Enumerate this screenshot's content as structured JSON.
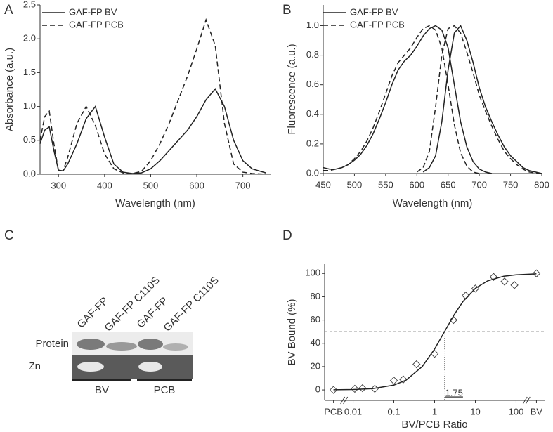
{
  "chart_data": [
    {
      "type": "line",
      "panel": "A",
      "x_label": "Wavelength (nm)",
      "y_label": "Absorbance (a.u.)",
      "x": [
        260,
        270,
        280,
        290,
        300,
        310,
        320,
        340,
        360,
        380,
        400,
        420,
        440,
        460,
        480,
        500,
        520,
        540,
        560,
        580,
        600,
        620,
        640,
        660,
        680,
        700,
        720,
        750
      ],
      "series": [
        {
          "name": "GAF-FP BV",
          "color": "#222222",
          "dashed": false,
          "values": [
            0.45,
            0.65,
            0.7,
            0.35,
            0.06,
            0.05,
            0.15,
            0.45,
            0.82,
            1.0,
            0.55,
            0.15,
            0.03,
            0.01,
            0.02,
            0.08,
            0.2,
            0.35,
            0.5,
            0.65,
            0.85,
            1.1,
            1.26,
            1.0,
            0.5,
            0.2,
            0.08,
            0.02
          ]
        },
        {
          "name": "GAF-FP PCB",
          "color": "#222222",
          "dashed": true,
          "values": [
            0.5,
            0.85,
            0.93,
            0.45,
            0.05,
            0.05,
            0.25,
            0.75,
            1.0,
            0.72,
            0.3,
            0.08,
            0.02,
            0.01,
            0.04,
            0.2,
            0.45,
            0.75,
            1.1,
            1.45,
            1.85,
            2.28,
            1.9,
            0.75,
            0.15,
            0.03,
            0.01,
            0
          ]
        }
      ],
      "xlim": [
        260,
        760
      ],
      "xticks": [
        300,
        400,
        500,
        600,
        700
      ],
      "ylim": [
        0,
        2.5
      ],
      "yticks": [
        {
          "value": 0,
          "label": "0.0"
        },
        0.5,
        {
          "value": 1,
          "label": "1.0"
        },
        1.5,
        {
          "value": 2,
          "label": "2.0"
        },
        2.5
      ],
      "log_x": false,
      "legend": "upper left"
    },
    {
      "type": "line",
      "panel": "B",
      "x_label": "Wavelength (nm)",
      "y_label": "Fluorescence (a.u.)",
      "x": [
        450,
        460,
        470,
        480,
        490,
        500,
        510,
        520,
        530,
        540,
        550,
        560,
        570,
        580,
        590,
        600,
        610,
        620,
        630,
        640,
        650,
        660,
        670,
        680,
        690,
        700,
        710,
        720,
        730,
        740,
        750,
        760,
        770,
        780,
        790,
        800
      ],
      "series": [
        {
          "name": "GAF-FP BV",
          "color": "#222222",
          "dashed": false,
          "values": [
            0.04,
            0.03,
            0.03,
            0.04,
            0.06,
            0.09,
            0.13,
            0.19,
            0.27,
            0.37,
            0.48,
            0.6,
            0.7,
            0.76,
            0.8,
            0.86,
            0.93,
            0.98,
            1.0,
            0.97,
            0.85,
            0.6,
            0.35,
            0.18,
            0.08,
            0.03,
            0.01,
            0,
            null,
            null,
            null,
            null,
            null,
            null,
            null,
            null
          ]
        },
        {
          "name": "GAF-FP PCB",
          "color": "#222222",
          "dashed": true,
          "values": [
            0.02,
            0.02,
            0.03,
            0.04,
            0.06,
            0.1,
            0.15,
            0.22,
            0.31,
            0.42,
            0.54,
            0.66,
            0.75,
            0.8,
            0.85,
            0.92,
            0.98,
            1.0,
            0.97,
            0.85,
            0.6,
            0.33,
            0.14,
            0.05,
            0.01,
            0,
            null,
            null,
            null,
            null,
            null,
            null,
            null,
            null,
            null,
            null
          ]
        },
        {
          "name": "GAF-FP BV",
          "color": "#222222",
          "dashed": false,
          "values": [
            null,
            null,
            null,
            null,
            null,
            null,
            null,
            null,
            null,
            null,
            null,
            null,
            null,
            null,
            null,
            null,
            0.01,
            0.04,
            0.12,
            0.35,
            0.7,
            0.95,
            1.0,
            0.9,
            0.75,
            0.58,
            0.45,
            0.35,
            0.26,
            0.18,
            0.12,
            0.08,
            0.04,
            0.02,
            0.01,
            0
          ]
        },
        {
          "name": "GAF-FP PCB",
          "color": "#222222",
          "dashed": true,
          "values": [
            null,
            null,
            null,
            null,
            null,
            null,
            null,
            null,
            null,
            null,
            null,
            null,
            null,
            null,
            null,
            0.01,
            0.04,
            0.15,
            0.45,
            0.8,
            0.98,
            1.0,
            0.95,
            0.82,
            0.68,
            0.53,
            0.42,
            0.32,
            0.23,
            0.15,
            0.1,
            0.06,
            0.03,
            0.01,
            0.005,
            0
          ]
        }
      ],
      "xlim": [
        450,
        800
      ],
      "xticks": [
        450,
        500,
        550,
        600,
        650,
        700,
        750,
        800
      ],
      "ylim": [
        0,
        1.14
      ],
      "yticks": [
        {
          "value": 0,
          "label": "0.0"
        },
        0.2,
        0.4,
        0.6,
        0.8,
        {
          "value": 1,
          "label": "1.0"
        }
      ],
      "log_x": false,
      "legend": "upper left"
    },
    {
      "type": "scatter",
      "panel": "D",
      "x_label": "BV/PCB Ratio",
      "y_label": "BV Bound (%)",
      "series": [
        {
          "type": "scatter",
          "color": "#444444",
          "x": [
            0.0033,
            0.011,
            0.017,
            0.034,
            0.1,
            0.17,
            0.36,
            1,
            2.9,
            5.8,
            10,
            28,
            52,
            91,
            316
          ],
          "values": [
            0,
            1,
            1.5,
            1,
            8,
            9,
            22,
            31,
            60,
            81,
            87,
            97,
            93,
            90,
            100
          ]
        },
        {
          "type": "line",
          "color": "#222222",
          "x": [
            0.0033,
            0.01,
            0.03,
            0.1,
            0.2,
            0.5,
            1,
            1.75,
            3,
            5,
            10,
            20,
            50,
            100,
            316
          ],
          "values": [
            0.1,
            0.34,
            1.1,
            4.1,
            8.4,
            20.1,
            35.1,
            50,
            64.4,
            76.0,
            87.2,
            93.6,
            97.6,
            98.8,
            99.7
          ]
        }
      ],
      "xlim": [
        0.002,
        500
      ],
      "xticks": [
        {
          "value": 0.0033,
          "label": "PCB"
        },
        0.01,
        0.1,
        1,
        10,
        100,
        {
          "value": 316,
          "label": "BV"
        }
      ],
      "ylim": [
        -9,
        108
      ],
      "yticks": [
        0,
        20,
        40,
        60,
        80,
        100
      ],
      "log_x": true,
      "hline": 50,
      "vline": 1.75
    }
  ],
  "gel": {
    "panel": "C",
    "lanes": [
      "GAF-FP",
      "GAF-FP C110S",
      "GAF-FP",
      "GAF-FP C110S"
    ],
    "rows": [
      "Protein",
      "Zn"
    ],
    "groups": [
      "BV",
      "PCB"
    ]
  }
}
